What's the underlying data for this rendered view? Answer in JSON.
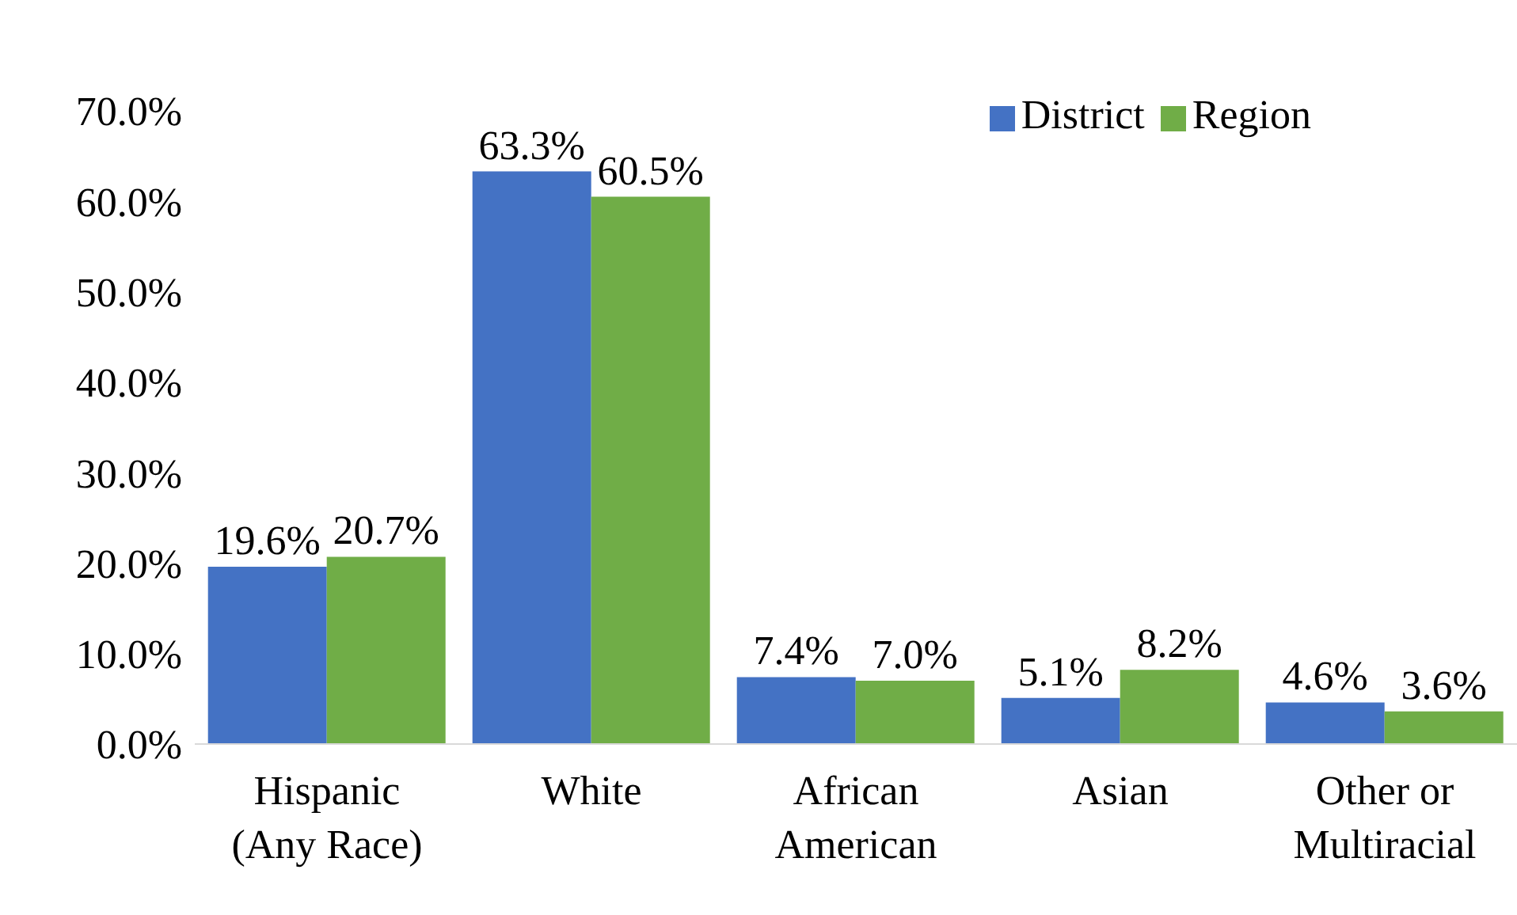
{
  "chart_data": {
    "type": "bar",
    "categories": [
      "Hispanic (Any Race)",
      "White",
      "African American",
      "Asian",
      "Other or Multiracial"
    ],
    "series": [
      {
        "name": "District",
        "color": "#4472c4",
        "values": [
          19.6,
          63.3,
          7.4,
          5.1,
          4.6
        ],
        "value_labels": [
          "19.6%",
          "63.3%",
          "7.4%",
          "5.1%",
          "4.6%"
        ]
      },
      {
        "name": "Region",
        "color": "#70ad47",
        "values": [
          20.7,
          60.5,
          7.0,
          8.2,
          3.6
        ],
        "value_labels": [
          "20.7%",
          "60.5%",
          "7.0%",
          "8.2%",
          "3.6%"
        ]
      }
    ],
    "ylim": [
      0,
      70
    ],
    "yticks": [
      {
        "value": 0,
        "label": "0.0%"
      },
      {
        "value": 10,
        "label": "10.0%"
      },
      {
        "value": 20,
        "label": "20.0%"
      },
      {
        "value": 30,
        "label": "30.0%"
      },
      {
        "value": 40,
        "label": "40.0%"
      },
      {
        "value": 50,
        "label": "50.0%"
      },
      {
        "value": 60,
        "label": "60.0%"
      },
      {
        "value": 70,
        "label": "70.0%"
      }
    ],
    "grid": false,
    "legend": "top right"
  }
}
